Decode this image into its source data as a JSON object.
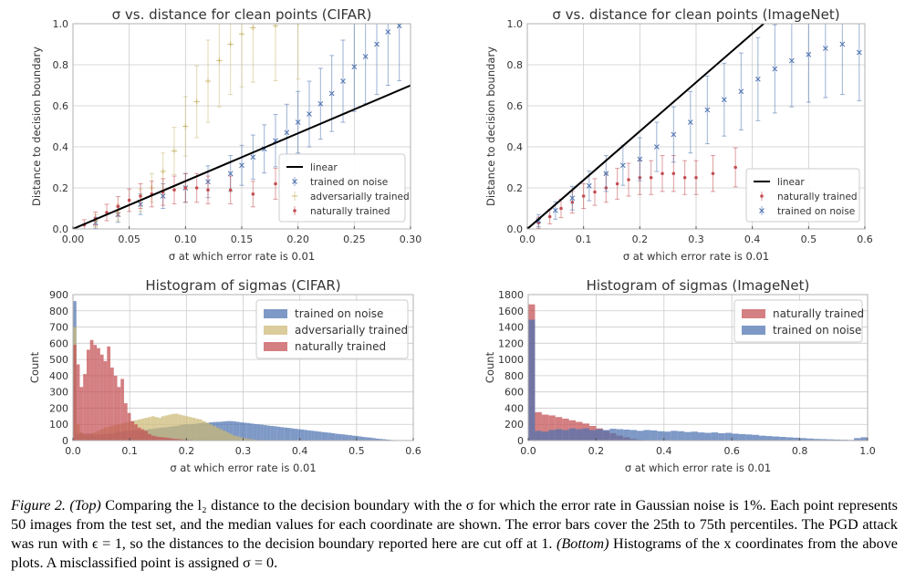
{
  "colors": {
    "noise": "#4c72b0",
    "adv": "#ccb974",
    "nat": "#c44e52",
    "linear": "#000000",
    "grid": "#cccccc",
    "frame": "#b0b0b0"
  },
  "chart_data": [
    {
      "id": "tl",
      "type": "scatter",
      "title": "σ vs. distance for clean points (CIFAR)",
      "xlabel": "σ at which error rate is 0.01",
      "ylabel": "Distance to decision boundary",
      "xlim": [
        0,
        0.3
      ],
      "ylim": [
        0,
        1.0
      ],
      "xticks": [
        "0.00",
        "0.05",
        "0.10",
        "0.15",
        "0.20",
        "0.25",
        "0.30"
      ],
      "yticks": [
        "0.0",
        "0.2",
        "0.4",
        "0.6",
        "0.8",
        "1.0"
      ],
      "grid": true,
      "legend_position": "lower-right",
      "linear": {
        "name": "linear",
        "slope": 2.33
      },
      "series": [
        {
          "key": "noise",
          "name": "trained on noise",
          "marker": "x",
          "points": [
            [
              0.02,
              0.03
            ],
            [
              0.04,
              0.07
            ],
            [
              0.06,
              0.12
            ],
            [
              0.08,
              0.16
            ],
            [
              0.1,
              0.2
            ],
            [
              0.12,
              0.23
            ],
            [
              0.14,
              0.27
            ],
            [
              0.15,
              0.31
            ],
            [
              0.16,
              0.35
            ],
            [
              0.17,
              0.39
            ],
            [
              0.18,
              0.43
            ],
            [
              0.19,
              0.47
            ],
            [
              0.2,
              0.52
            ],
            [
              0.21,
              0.56
            ],
            [
              0.22,
              0.61
            ],
            [
              0.23,
              0.66
            ],
            [
              0.24,
              0.72
            ],
            [
              0.25,
              0.79
            ],
            [
              0.26,
              0.84
            ],
            [
              0.27,
              0.9
            ],
            [
              0.28,
              0.96
            ],
            [
              0.29,
              0.99
            ]
          ]
        },
        {
          "key": "adv",
          "name": "adversarially trained",
          "marker": "+",
          "points": [
            [
              0.02,
              0.04
            ],
            [
              0.04,
              0.08
            ],
            [
              0.06,
              0.14
            ],
            [
              0.07,
              0.2
            ],
            [
              0.08,
              0.28
            ],
            [
              0.09,
              0.38
            ],
            [
              0.1,
              0.5
            ],
            [
              0.11,
              0.62
            ],
            [
              0.12,
              0.72
            ],
            [
              0.13,
              0.82
            ],
            [
              0.14,
              0.9
            ],
            [
              0.15,
              0.95
            ],
            [
              0.16,
              0.98
            ],
            [
              0.18,
              0.99
            ],
            [
              0.2,
              1.0
            ]
          ]
        },
        {
          "key": "nat",
          "name": "naturally trained",
          "marker": "dot",
          "points": [
            [
              0.01,
              0.02
            ],
            [
              0.02,
              0.05
            ],
            [
              0.03,
              0.08
            ],
            [
              0.04,
              0.11
            ],
            [
              0.05,
              0.14
            ],
            [
              0.06,
              0.16
            ],
            [
              0.07,
              0.17
            ],
            [
              0.08,
              0.18
            ],
            [
              0.09,
              0.19
            ],
            [
              0.1,
              0.2
            ],
            [
              0.11,
              0.2
            ],
            [
              0.12,
              0.19
            ],
            [
              0.14,
              0.19
            ],
            [
              0.16,
              0.17
            ],
            [
              0.18,
              0.22
            ]
          ]
        }
      ]
    },
    {
      "id": "tr",
      "type": "scatter",
      "title": "σ vs. distance for clean points (ImageNet)",
      "xlabel": "σ at which error rate is 0.01",
      "ylabel": "Distance to decision boundary",
      "xlim": [
        0,
        0.6
      ],
      "ylim": [
        0,
        1.0
      ],
      "xticks": [
        "0.0",
        "0.1",
        "0.2",
        "0.3",
        "0.4",
        "0.5",
        "0.6"
      ],
      "yticks": [
        "0.0",
        "0.2",
        "0.4",
        "0.6",
        "0.8",
        "1.0"
      ],
      "grid": true,
      "legend_position": "lower-right",
      "linear": {
        "name": "linear",
        "slope": 2.38
      },
      "series": [
        {
          "key": "nat",
          "name": "naturally trained",
          "marker": "dot",
          "points": [
            [
              0.02,
              0.03
            ],
            [
              0.04,
              0.06
            ],
            [
              0.06,
              0.1
            ],
            [
              0.08,
              0.13
            ],
            [
              0.1,
              0.16
            ],
            [
              0.12,
              0.18
            ],
            [
              0.14,
              0.2
            ],
            [
              0.16,
              0.22
            ],
            [
              0.18,
              0.24
            ],
            [
              0.2,
              0.25
            ],
            [
              0.22,
              0.25
            ],
            [
              0.24,
              0.27
            ],
            [
              0.26,
              0.27
            ],
            [
              0.28,
              0.25
            ],
            [
              0.3,
              0.25
            ],
            [
              0.33,
              0.27
            ],
            [
              0.37,
              0.3
            ]
          ]
        },
        {
          "key": "noise",
          "name": "trained on noise",
          "marker": "x",
          "points": [
            [
              0.02,
              0.04
            ],
            [
              0.05,
              0.09
            ],
            [
              0.08,
              0.15
            ],
            [
              0.11,
              0.21
            ],
            [
              0.14,
              0.27
            ],
            [
              0.17,
              0.31
            ],
            [
              0.2,
              0.34
            ],
            [
              0.23,
              0.4
            ],
            [
              0.26,
              0.46
            ],
            [
              0.29,
              0.52
            ],
            [
              0.32,
              0.58
            ],
            [
              0.35,
              0.63
            ],
            [
              0.38,
              0.67
            ],
            [
              0.41,
              0.73
            ],
            [
              0.44,
              0.78
            ],
            [
              0.47,
              0.82
            ],
            [
              0.5,
              0.85
            ],
            [
              0.53,
              0.88
            ],
            [
              0.56,
              0.9
            ],
            [
              0.59,
              0.86
            ]
          ]
        }
      ]
    },
    {
      "id": "bl",
      "type": "bar",
      "title": "Histogram of sigmas (CIFAR)",
      "xlabel": "σ at which error rate is 0.01",
      "ylabel": "Count",
      "xlim": [
        0,
        0.6
      ],
      "ylim": [
        0,
        900
      ],
      "xticks": [
        "0.0",
        "0.1",
        "0.2",
        "0.3",
        "0.4",
        "0.5",
        "0.6"
      ],
      "yticks": [
        "0",
        "100",
        "200",
        "300",
        "400",
        "500",
        "600",
        "700",
        "800",
        "900"
      ],
      "grid": true,
      "legend_position": "top-right",
      "bin_start": 0,
      "bin_width": 0.006,
      "series": [
        {
          "key": "noise",
          "name": "trained on noise",
          "values": [
            860,
            40,
            45,
            40,
            42,
            40,
            35,
            38,
            40,
            40,
            42,
            45,
            50,
            55,
            55,
            60,
            60,
            62,
            65,
            62,
            60,
            65,
            70,
            72,
            75,
            78,
            80,
            82,
            85,
            88,
            90,
            95,
            98,
            100,
            100,
            102,
            105,
            108,
            110,
            110,
            112,
            114,
            115,
            116,
            118,
            120,
            120,
            118,
            115,
            112,
            110,
            108,
            105,
            102,
            100,
            98,
            95,
            92,
            90,
            88,
            85,
            82,
            80,
            78,
            75,
            72,
            70,
            68,
            65,
            62,
            60,
            58,
            55,
            52,
            50,
            48,
            45,
            42,
            40,
            38,
            35,
            33,
            30,
            28,
            25,
            22,
            20,
            18,
            15,
            12,
            10,
            8,
            6,
            4,
            3,
            2,
            1,
            1,
            0,
            0
          ]
        },
        {
          "key": "adv",
          "name": "adversarially trained",
          "values": [
            700,
            100,
            50,
            40,
            40,
            45,
            50,
            60,
            70,
            80,
            85,
            90,
            95,
            100,
            105,
            110,
            115,
            120,
            125,
            130,
            135,
            140,
            145,
            150,
            145,
            140,
            150,
            155,
            160,
            165,
            165,
            160,
            155,
            150,
            145,
            140,
            135,
            130,
            120,
            110,
            100,
            90,
            80,
            70,
            60,
            50,
            40,
            30,
            25,
            20,
            15,
            10,
            8,
            5,
            3,
            2,
            1,
            1,
            0,
            0,
            0,
            0,
            0,
            0,
            0,
            0,
            0,
            0,
            0,
            0,
            0,
            0,
            0,
            0,
            0,
            0,
            0,
            0,
            0,
            0,
            0,
            0,
            0,
            0,
            0,
            0,
            0,
            0,
            0,
            0,
            0,
            0,
            0,
            0,
            0,
            0,
            0,
            0,
            0,
            0
          ]
        },
        {
          "key": "nat",
          "name": "naturally trained",
          "values": [
            590,
            470,
            330,
            410,
            560,
            620,
            590,
            570,
            530,
            490,
            580,
            450,
            400,
            330,
            380,
            230,
            170,
            120,
            100,
            80,
            70,
            60,
            40,
            30,
            25,
            22,
            20,
            18,
            15,
            12,
            10,
            8,
            6,
            5,
            4,
            3,
            2,
            2,
            1,
            1,
            1,
            0,
            0,
            0,
            0,
            0,
            0,
            0,
            0,
            0,
            0,
            0,
            0,
            0,
            0,
            0,
            0,
            0,
            0,
            0,
            0,
            0,
            0,
            0,
            0,
            0,
            0,
            0,
            0,
            0,
            0,
            0,
            0,
            0,
            0,
            0,
            0,
            0,
            0,
            0,
            0,
            0,
            0,
            0,
            0,
            0,
            0,
            0,
            0,
            0,
            0,
            0,
            0,
            0,
            0,
            0,
            0,
            0,
            0,
            0
          ]
        }
      ]
    },
    {
      "id": "br",
      "type": "bar",
      "title": "Histogram of sigmas (ImageNet)",
      "xlabel": "σ at which error rate is 0.01",
      "ylabel": "Count",
      "xlim": [
        0,
        1.0
      ],
      "ylim": [
        0,
        1800
      ],
      "xticks": [
        "0.0",
        "0.2",
        "0.4",
        "0.6",
        "0.8",
        "1.0"
      ],
      "yticks": [
        "0",
        "200",
        "400",
        "600",
        "800",
        "1000",
        "1200",
        "1400",
        "1600",
        "1800"
      ],
      "grid": true,
      "legend_position": "top-right",
      "bin_start": 0,
      "bin_width": 0.02,
      "series": [
        {
          "key": "nat",
          "name": "naturally trained",
          "values": [
            1680,
            350,
            320,
            310,
            290,
            270,
            250,
            230,
            210,
            180,
            150,
            120,
            90,
            60,
            40,
            20,
            10,
            5,
            3,
            2,
            1,
            1,
            0,
            0,
            0,
            0,
            0,
            0,
            0,
            0,
            0,
            0,
            0,
            0,
            0,
            0,
            0,
            0,
            0,
            0,
            0,
            0,
            0,
            0,
            0,
            0,
            0,
            0,
            0,
            0
          ]
        },
        {
          "key": "noise",
          "name": "trained on noise",
          "values": [
            1490,
            120,
            110,
            130,
            140,
            130,
            150,
            140,
            150,
            130,
            140,
            130,
            145,
            140,
            135,
            130,
            120,
            130,
            125,
            115,
            110,
            120,
            115,
            105,
            110,
            100,
            95,
            100,
            90,
            95,
            85,
            80,
            75,
            70,
            60,
            55,
            50,
            45,
            40,
            35,
            30,
            25,
            20,
            18,
            15,
            12,
            10,
            8,
            30,
            40
          ]
        }
      ]
    }
  ],
  "caption": {
    "lead": "Figure 2. (Top)",
    "body": " Comparing the l₂ distance to the decision boundary with the σ for which the error rate in Gaussian noise is 1%. Each point represents 50 images from the test set, and the median values for each coordinate are shown. The error bars cover the 25th to 75th percentiles. The PGD attack was run with ϵ = 1, so the distances to the decision boundary reported here are cut off at 1. ",
    "sep": "(Bottom)",
    "tail": " Histograms of the x coordinates from the above plots. A misclassified point is assigned σ = 0."
  }
}
